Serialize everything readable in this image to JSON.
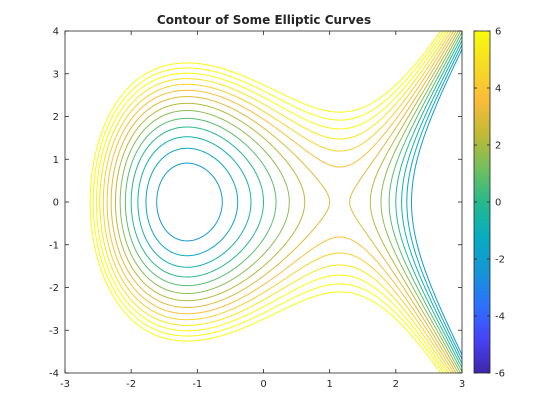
{
  "chart_data": {
    "type": "contour",
    "title": "Contour of Some Elliptic Curves",
    "function": "y^2 - x^3 + 4x",
    "xlim": [
      -3,
      3
    ],
    "ylim": [
      -4,
      4
    ],
    "x_ticks": [
      -3,
      -2,
      -1,
      0,
      1,
      2,
      3
    ],
    "y_ticks": [
      -4,
      -3,
      -2,
      -1,
      0,
      1,
      2,
      3,
      4
    ],
    "levels": [
      -2.25,
      -1.5,
      -0.75,
      0,
      0.75,
      1.5,
      2.25,
      3.0,
      3.75,
      4.5,
      5.25,
      6.0,
      6.75,
      7.5
    ],
    "colorbar": {
      "position": "right",
      "range": [
        -6,
        6
      ],
      "ticks": [
        -6,
        -4,
        -2,
        0,
        2,
        4,
        6
      ],
      "colormap": [
        "#3e26a8",
        "#4743f8",
        "#2c73fb",
        "#1496d5",
        "#08acc0",
        "#26b98c",
        "#74bf5d",
        "#c2b934",
        "#fbbc3b",
        "#f6db23",
        "#f9fb0e"
      ]
    },
    "grid": false
  }
}
